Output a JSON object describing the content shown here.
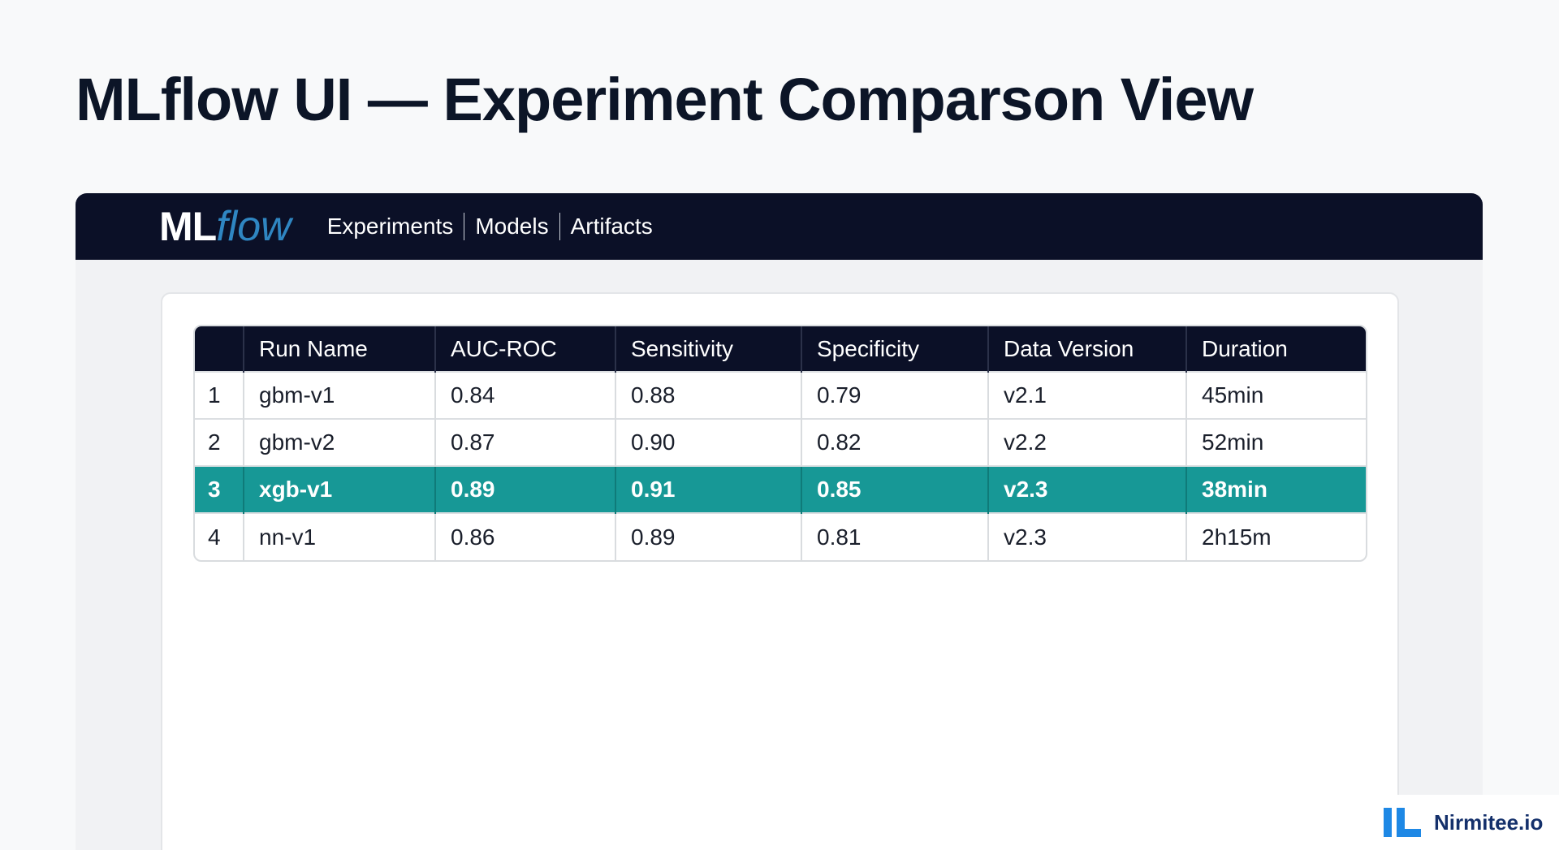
{
  "page": {
    "title": "MLflow UI — Experiment Comparson View"
  },
  "nav": {
    "logo_ml": "ML",
    "logo_flow": "flow",
    "items": [
      "Experiments",
      "Models",
      "Artifacts"
    ]
  },
  "table": {
    "columns": [
      "",
      "Run Name",
      "AUC-ROC",
      "Sensitivity",
      "Specificity",
      "Data Version",
      "Duration"
    ],
    "rows": [
      [
        "1",
        "gbm-v1",
        "0.84",
        "0.88",
        "0.79",
        "v2.1",
        "45min"
      ],
      [
        "2",
        "gbm-v2",
        "0.87",
        "0.90",
        "0.82",
        "v2.2",
        "52min"
      ],
      [
        "3",
        "xgb-v1",
        "0.89",
        "0.91",
        "0.85",
        "v2.3",
        "38min"
      ],
      [
        "4",
        "nn-v1",
        "0.86",
        "0.89",
        "0.81",
        "v2.3",
        "2h15m"
      ]
    ],
    "highlighted_row": 3
  },
  "brand": {
    "name": "Nirmitee.io"
  },
  "colors": {
    "navbar": "#0b1027",
    "highlight": "#179896",
    "logo_flow": "#2f86c2",
    "brand": "#1e88e5"
  }
}
